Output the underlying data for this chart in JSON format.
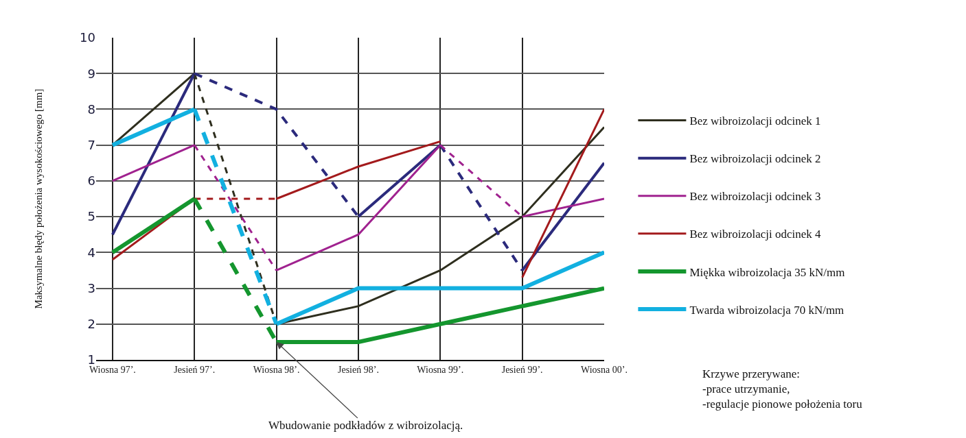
{
  "chart_data": {
    "type": "line",
    "ylabel": "Maksymalne błędy położenia wysokościowego [mm]",
    "categories": [
      "Wiosna 97’.",
      "Jesień 97’.",
      "Wiosna 98’.",
      "Jesień 98’.",
      "Wiosna 99’.",
      "Jesień 99’.",
      "Wiosna 00’."
    ],
    "series": [
      {
        "name": "Bez wibroizolacji odcinek 1",
        "color": "#2e2e1e",
        "values": [
          7,
          9,
          null,
          null,
          null,
          null,
          null
        ]
      },
      {
        "name": "Bez wibroizolacji odcinek 2",
        "color": "#2b2a7c",
        "values": [
          4.5,
          9,
          null,
          null,
          null,
          null,
          null
        ]
      },
      {
        "name": "Bez wibroizolacji odcinek 3",
        "color": "#a0228f",
        "values": [
          6,
          7,
          null,
          null,
          null,
          null,
          null
        ]
      },
      {
        "name": "Bez wibroizolacji odcinek 4",
        "color": "#a31a1c",
        "values": [
          3.8,
          5.5,
          null,
          null,
          null,
          null,
          null
        ]
      },
      {
        "name": "Miękka wibroizolacja 35 kN/mm",
        "color": "#14962e",
        "values": [
          4,
          5.5,
          null,
          null,
          null,
          null,
          null
        ]
      },
      {
        "name": "Twarda wibroizolacja 70 kN/mm",
        "color": "#12b0e0",
        "values": [
          7,
          8,
          null,
          null,
          null,
          null,
          null
        ]
      },
      {
        "color": "#2e2e1e",
        "values": [
          null,
          null,
          2,
          2.5,
          3.5,
          5,
          7.5
        ]
      },
      {
        "color": "#2b2a7c",
        "values": [
          null,
          null,
          null,
          5,
          7,
          null,
          null
        ]
      },
      {
        "color": "#2b2a7c",
        "values": [
          null,
          null,
          null,
          null,
          null,
          3.5,
          6.5
        ]
      },
      {
        "color": "#a0228f",
        "values": [
          null,
          null,
          3.5,
          4.5,
          7,
          null,
          null
        ]
      },
      {
        "color": "#a0228f",
        "values": [
          null,
          null,
          null,
          null,
          null,
          5,
          5.5
        ]
      },
      {
        "color": "#a31a1c",
        "values": [
          null,
          null,
          5.5,
          6.4,
          7.1,
          null,
          null
        ]
      },
      {
        "color": "#a31a1c",
        "values": [
          null,
          null,
          null,
          null,
          null,
          3.3,
          8
        ]
      },
      {
        "color": "#14962e",
        "values": [
          null,
          null,
          1.5,
          1.5,
          2,
          2.5,
          3
        ]
      },
      {
        "color": "#12b0e0",
        "values": [
          null,
          null,
          2,
          3,
          3,
          3,
          4
        ]
      },
      {
        "color": "#2e2e1e",
        "line_style": "dashed",
        "values": [
          null,
          9,
          2,
          null,
          null,
          null,
          null
        ]
      },
      {
        "color": "#2b2a7c",
        "line_style": "dashed",
        "values": [
          null,
          9,
          8,
          5,
          null,
          null,
          null
        ]
      },
      {
        "color": "#2b2a7c",
        "line_style": "dashed",
        "values": [
          null,
          null,
          null,
          null,
          7,
          3.5,
          null
        ]
      },
      {
        "color": "#a0228f",
        "line_style": "dashed",
        "values": [
          null,
          7,
          3.5,
          null,
          null,
          null,
          null
        ]
      },
      {
        "color": "#a0228f",
        "line_style": "dashed",
        "values": [
          null,
          null,
          null,
          null,
          7,
          5,
          null
        ]
      },
      {
        "color": "#a31a1c",
        "line_style": "dashed",
        "values": [
          null,
          5.5,
          5.5,
          null,
          null,
          null,
          null
        ]
      },
      {
        "color": "#14962e",
        "line_style": "dashed",
        "values": [
          null,
          5.5,
          1.5,
          null,
          null,
          null,
          null
        ]
      },
      {
        "color": "#12b0e0",
        "line_style": "dashed",
        "values": [
          null,
          8,
          2,
          null,
          null,
          null,
          null
        ]
      }
    ],
    "ylim": [
      1,
      10
    ],
    "yticks": [
      1,
      2,
      3,
      4,
      5,
      6,
      7,
      8,
      9,
      10
    ],
    "grid": true,
    "legend": "right",
    "marker": "none",
    "line_style": "solid",
    "annotations": [
      {
        "text": "Wbudowanie podkładów z wibroizolacją.",
        "x": "Wiosna 98’.",
        "y": 1.5
      },
      "Krzywe przerywane:\n-prace utrzymanie,\n-regulacje pionowe położenia toru"
    ]
  }
}
